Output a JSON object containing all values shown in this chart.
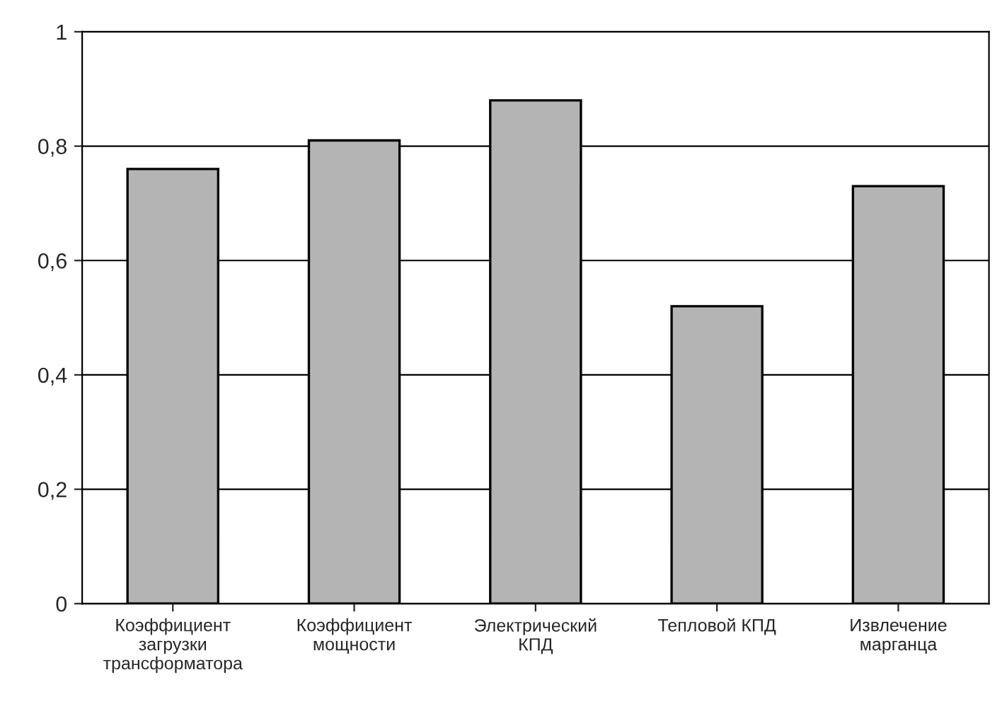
{
  "chart_data": {
    "type": "bar",
    "categories": [
      "Коэффициент\nзагрузки\nтрансформатора",
      "Коэффициент\nмощности",
      "Электрический\nКПД",
      "Тепловой КПД",
      "Извлечение\nмарганца"
    ],
    "values": [
      0.76,
      0.81,
      0.88,
      0.52,
      0.73
    ],
    "color": "#b4b4b4",
    "ylim": [
      0,
      1
    ],
    "yticks": [
      0,
      {
        "value": 0.2,
        "label": "0,2"
      },
      {
        "value": 0.4,
        "label": "0,4"
      },
      {
        "value": 0.6,
        "label": "0,6"
      },
      {
        "value": 0.8,
        "label": "0,8"
      },
      1
    ],
    "grid": "y"
  }
}
